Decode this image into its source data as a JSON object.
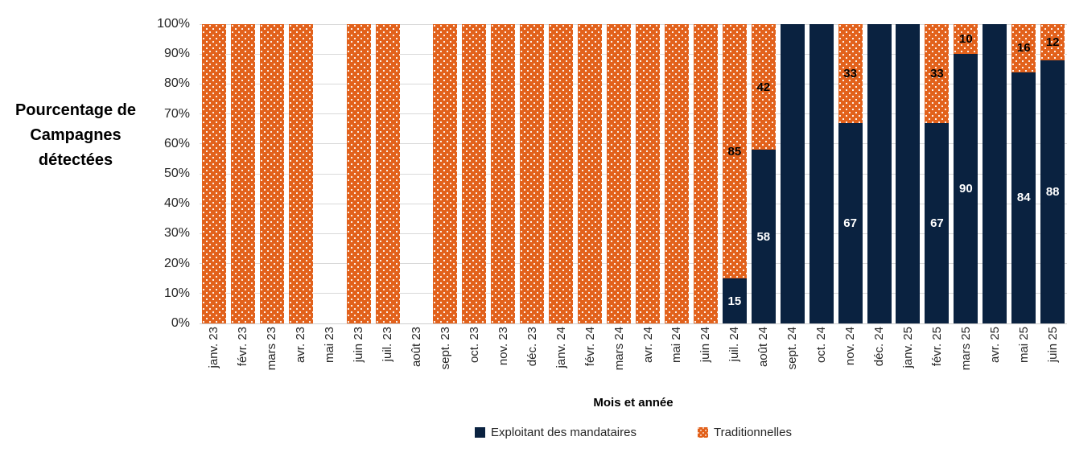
{
  "colors": {
    "navy": "#0A2240",
    "orange": "#E2611B",
    "gridline": "#D9D9D9",
    "label_on_navy": "#FFFFFF",
    "label_on_orange": "#000000",
    "tick_text": "#262626",
    "background": "#FFFFFF"
  },
  "chart_data": {
    "type": "bar",
    "subtype": "100-percent-stacked-column",
    "y_axis_title": "Pourcentage de Campagnes détectées",
    "y_axis_title_lines": [
      "Pourcentage de",
      "Campagnes",
      "détectées"
    ],
    "x_axis_title": "Mois et année",
    "y_ticks": [
      "100%",
      "90%",
      "80%",
      "70%",
      "60%",
      "50%",
      "40%",
      "30%",
      "20%",
      "10%",
      "0%"
    ],
    "ylim": [
      0,
      100
    ],
    "grid": true,
    "legend_position": "bottom",
    "categories": [
      "janv. 23",
      "févr. 23",
      "mars 23",
      "avr. 23",
      "mai 23",
      "juin 23",
      "juil. 23",
      "août 23",
      "sept. 23",
      "oct. 23",
      "nov. 23",
      "déc. 23",
      "janv. 24",
      "févr. 24",
      "mars 24",
      "avr. 24",
      "mai 24",
      "juin 24",
      "juil. 24",
      "août 24",
      "sept. 24",
      "oct. 24",
      "nov. 24",
      "déc. 24",
      "janv. 25",
      "févr. 25",
      "mars 25",
      "avr. 25",
      "mai 25",
      "juin 25"
    ],
    "series": [
      {
        "name": "Exploitant des mandataires",
        "color": "#0A2240",
        "pattern": "solid",
        "values": [
          0,
          0,
          0,
          0,
          null,
          0,
          0,
          null,
          0,
          0,
          0,
          0,
          0,
          0,
          0,
          0,
          0,
          0,
          15,
          58,
          100,
          100,
          67,
          100,
          100,
          67,
          90,
          100,
          84,
          88
        ]
      },
      {
        "name": "Traditionnelles",
        "color": "#E2611B",
        "pattern": "white-dots",
        "values": [
          100,
          100,
          100,
          100,
          null,
          100,
          100,
          null,
          100,
          100,
          100,
          100,
          100,
          100,
          100,
          100,
          100,
          100,
          85,
          42,
          0,
          0,
          33,
          0,
          0,
          33,
          10,
          0,
          16,
          12
        ]
      }
    ],
    "data_label_rule": "only segment values strictly between 0 and 100 are labeled"
  }
}
